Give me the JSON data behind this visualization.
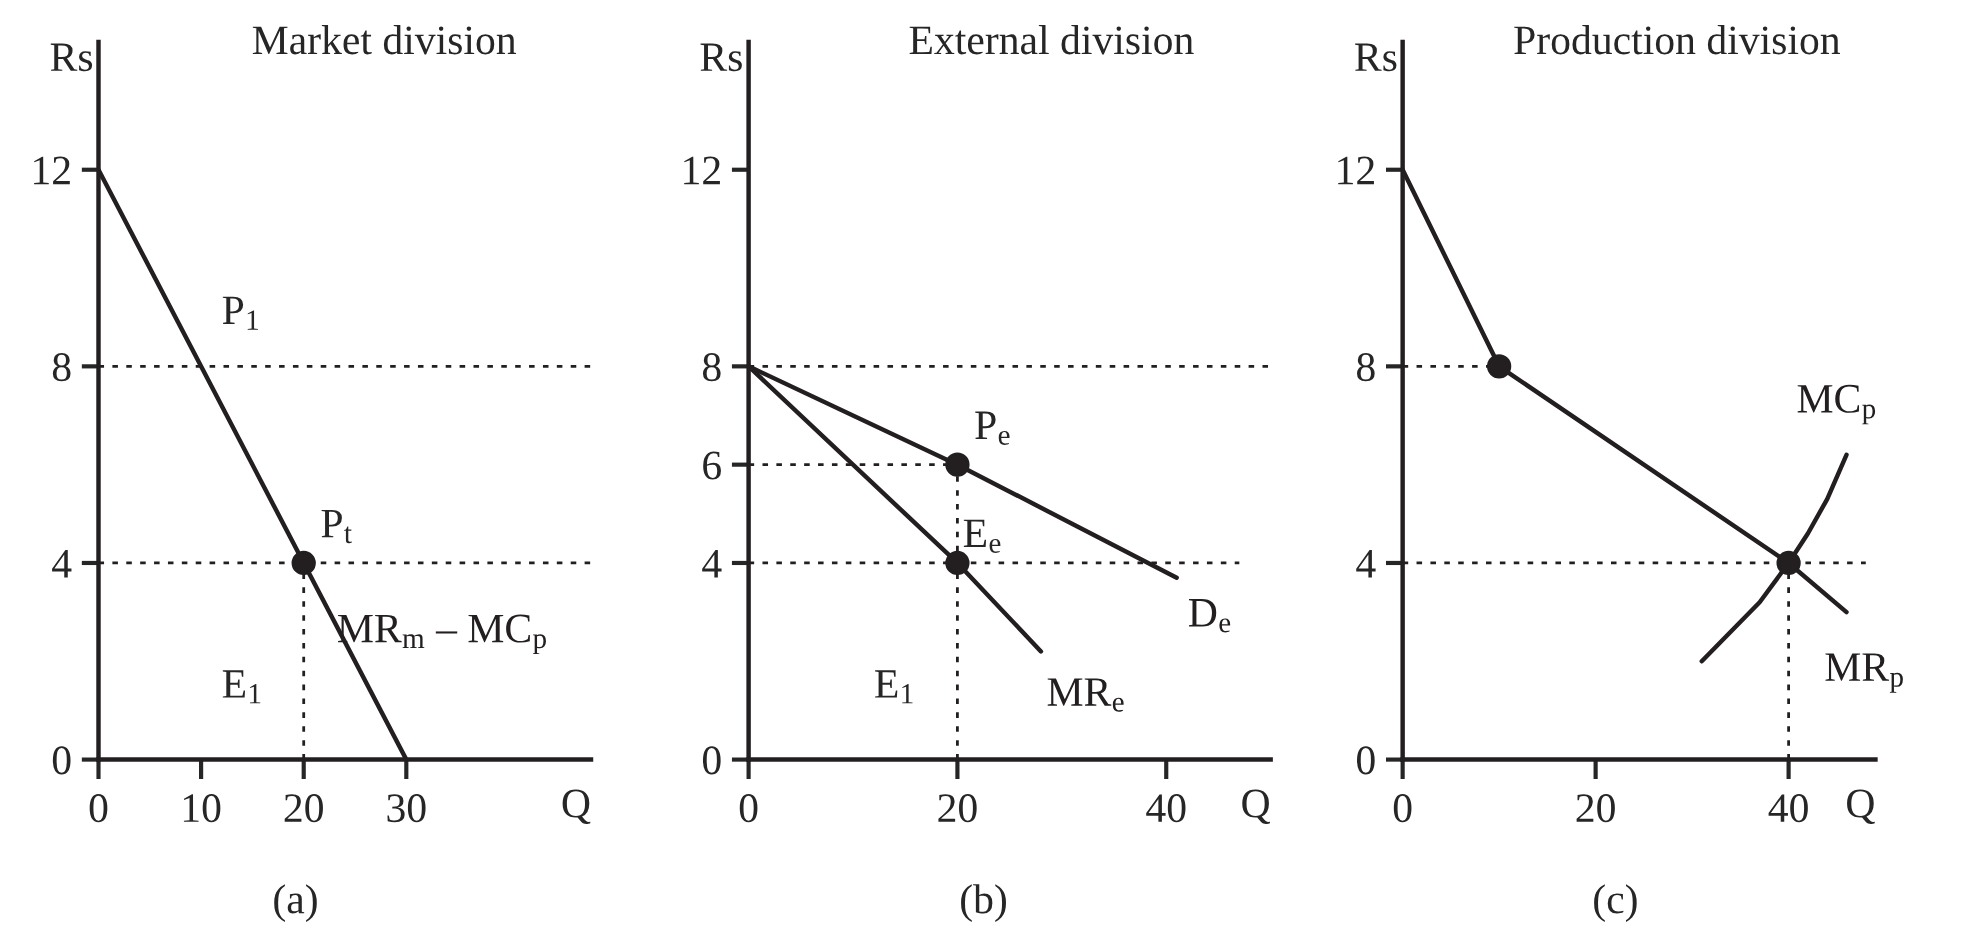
{
  "chart_data": [
    {
      "type": "line",
      "title": "Market division",
      "xlabel": "Q",
      "ylabel": "Rs",
      "xlim": [
        0,
        48
      ],
      "ylim": [
        0,
        14.6
      ],
      "xticks": [
        0,
        10,
        20,
        30
      ],
      "yticks": [
        0,
        4,
        8,
        12
      ],
      "series": [
        {
          "name": "MR$_{m}$ – MC$_{p}$",
          "color": "#231f20",
          "line_style": "solid",
          "x": [
            0,
            30
          ],
          "values": [
            12,
            0
          ]
        },
        {
          "color": "#231f20",
          "line_style": "dotted",
          "x": [
            20,
            20
          ],
          "values": [
            0,
            4
          ]
        },
        {
          "type": "scatter",
          "color": "#231f20",
          "marker": "circle",
          "x": [
            20
          ],
          "values": [
            4
          ]
        }
      ],
      "ref_lines": [
        {
          "axis": "y",
          "value": 8,
          "label": "P$_{1}$",
          "color": "#231f20",
          "line_style": "dotted"
        },
        {
          "axis": "y",
          "value": 4,
          "color": "#231f20",
          "line_style": "dotted"
        }
      ],
      "annotations": [
        {
          "text": "P$_{t}$",
          "x": 20,
          "y": 4
        },
        "E$_{1}$",
        "(a)"
      ]
    },
    {
      "type": "line",
      "title": "External division",
      "xlabel": "Q",
      "ylabel": "Rs",
      "xlim": [
        0,
        50
      ],
      "ylim": [
        0,
        14.6
      ],
      "xticks": [
        0,
        20,
        40
      ],
      "yticks": [
        0,
        4,
        6,
        8,
        12
      ],
      "series": [
        {
          "name": "D$_{e}$",
          "color": "#231f20",
          "line_style": "solid",
          "x": [
            0,
            20,
            41
          ],
          "values": [
            8,
            6,
            3.7
          ]
        },
        {
          "name": "MR$_{e}$",
          "color": "#231f20",
          "line_style": "solid",
          "x": [
            0,
            20,
            28
          ],
          "values": [
            8,
            4,
            2.2
          ]
        },
        {
          "color": "#231f20",
          "line_style": "dotted",
          "x": [
            0,
            20
          ],
          "values": [
            6,
            6
          ]
        },
        {
          "color": "#231f20",
          "line_style": "dotted",
          "x": [
            0,
            47
          ],
          "values": [
            4,
            4
          ]
        },
        {
          "color": "#231f20",
          "line_style": "dotted",
          "x": [
            20,
            20
          ],
          "values": [
            0,
            6
          ]
        },
        {
          "type": "scatter",
          "color": "#231f20",
          "marker": "circle",
          "x": [
            20,
            20
          ],
          "values": [
            6,
            4
          ]
        }
      ],
      "ref_lines": [
        {
          "axis": "y",
          "value": 8,
          "color": "#231f20",
          "line_style": "dotted"
        }
      ],
      "annotations": [
        {
          "text": "P$_{e}$",
          "x": 20,
          "y": 6
        },
        "E$_{e}$",
        "E$_{1}$",
        "(b)"
      ]
    },
    {
      "type": "line",
      "title": "Production division",
      "xlabel": "Q",
      "ylabel": "Rs",
      "xlim": [
        0,
        49
      ],
      "ylim": [
        0,
        14.6
      ],
      "xticks": [
        0,
        20,
        40
      ],
      "yticks": [
        0,
        4,
        8,
        12
      ],
      "series": [
        {
          "name": "MR$_{p}$",
          "color": "#231f20",
          "line_style": "solid",
          "x": [
            0,
            10,
            40,
            46
          ],
          "values": [
            12,
            8,
            4,
            3.0
          ]
        },
        {
          "name": "MC$_{p}$",
          "color": "#231f20",
          "line_style": "solid",
          "x": [
            31,
            34,
            37,
            40,
            42,
            44,
            46
          ],
          "values": [
            2.0,
            2.6,
            3.2,
            4,
            4.6,
            5.3,
            6.2
          ]
        },
        {
          "color": "#231f20",
          "line_style": "dotted",
          "x": [
            0,
            10
          ],
          "values": [
            8,
            8
          ]
        },
        {
          "color": "#231f20",
          "line_style": "dotted",
          "x": [
            0,
            48
          ],
          "values": [
            4,
            4
          ]
        },
        {
          "color": "#231f20",
          "line_style": "dotted",
          "x": [
            40,
            40
          ],
          "values": [
            0,
            4
          ]
        },
        {
          "type": "scatter",
          "color": "#231f20",
          "marker": "circle",
          "x": [
            10,
            40
          ],
          "values": [
            8,
            4
          ]
        }
      ],
      "annotations": [
        "(c)"
      ]
    }
  ]
}
